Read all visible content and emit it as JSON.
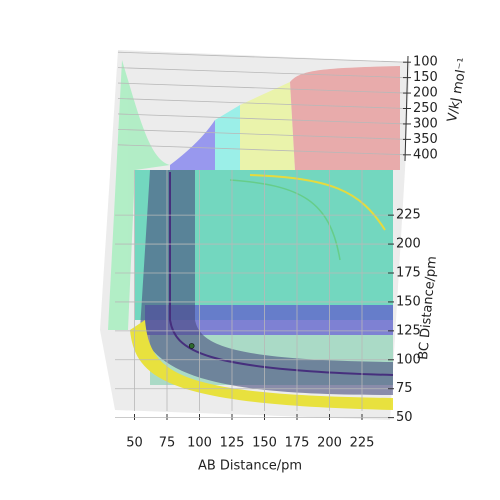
{
  "chart_data": {
    "type": "surface3d",
    "xlabel": "AB Distance/pm",
    "ylabel": "BC Distance/pm",
    "zlabel": "V/kJ mol⁻¹",
    "xlim": [
      35,
      245
    ],
    "xticks": [
      50,
      75,
      100,
      125,
      150,
      175,
      200,
      225
    ],
    "ylim": [
      35,
      245
    ],
    "yticks": [
      50,
      75,
      100,
      125,
      150,
      175,
      200,
      225
    ],
    "zlim": [
      80,
      420
    ],
    "zticks": [
      100,
      150,
      200,
      250,
      300,
      350,
      400
    ],
    "point": {
      "x": 94,
      "y": 112,
      "color": "#2e6b2e"
    },
    "grid": true
  }
}
